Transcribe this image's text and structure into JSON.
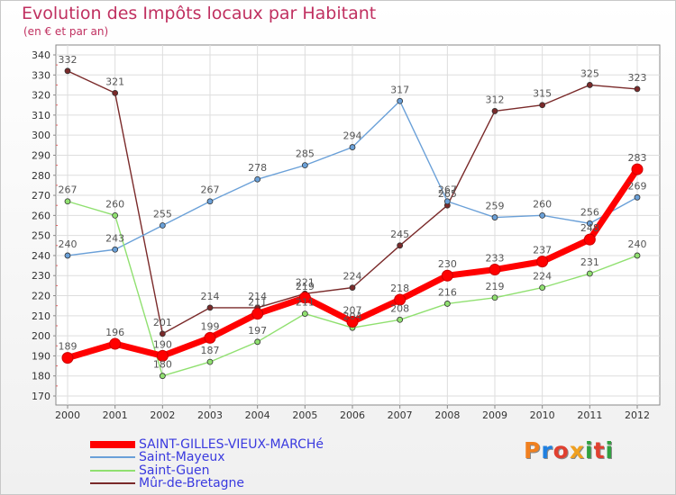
{
  "header": {
    "title": "Evolution des Impôts locaux par Habitant",
    "subtitle": "(en € et par an)"
  },
  "logo": {
    "letters": [
      "P",
      "r",
      "o",
      "x",
      "i",
      "t",
      "i"
    ],
    "colors": [
      "#f08020",
      "#2080e0",
      "#e04030",
      "#f0a020",
      "#30a040",
      "#e04030",
      "#30a040"
    ]
  },
  "chart_data": {
    "type": "line",
    "title": "Evolution des Impôts locaux par Habitant",
    "subtitle": "(en € et par an)",
    "xlabel": "",
    "ylabel": "",
    "x": [
      "2000",
      "2001",
      "2002",
      "2003",
      "2004",
      "2005",
      "2006",
      "2007",
      "2008",
      "2009",
      "2010",
      "2011",
      "2012"
    ],
    "ylim": [
      170,
      340
    ],
    "yticks": [
      170,
      180,
      190,
      200,
      210,
      220,
      230,
      240,
      250,
      260,
      270,
      280,
      290,
      300,
      310,
      320,
      330,
      340
    ],
    "grid": true,
    "legend_position": "bottom-left",
    "series": [
      {
        "name": "SAINT-GILLES-VIEUX-MARCHé",
        "color": "#ff0000",
        "values": [
          189,
          196,
          190,
          199,
          211,
          219,
          207,
          218,
          230,
          233,
          237,
          248,
          283
        ]
      },
      {
        "name": "Saint-Mayeux",
        "color": "#6aa0d8",
        "values": [
          240,
          243,
          255,
          267,
          278,
          285,
          294,
          317,
          267,
          259,
          260,
          256,
          269
        ]
      },
      {
        "name": "Saint-Guen",
        "color": "#90e070",
        "values": [
          267,
          260,
          180,
          187,
          197,
          211,
          204,
          208,
          216,
          219,
          224,
          231,
          240
        ]
      },
      {
        "name": "Mûr-de-Bretagne",
        "color": "#7a2a2a",
        "values": [
          332,
          321,
          201,
          214,
          214,
          221,
          224,
          245,
          265,
          312,
          315,
          325,
          323
        ]
      }
    ]
  }
}
